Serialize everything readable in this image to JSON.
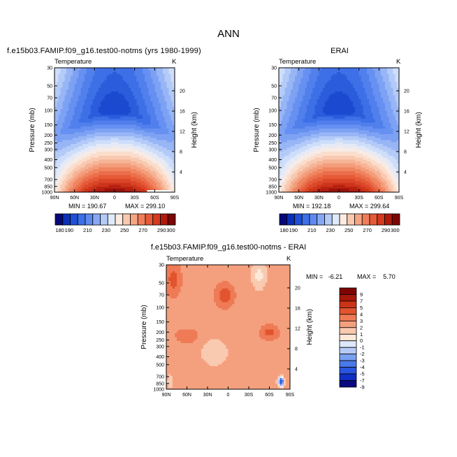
{
  "figure": {
    "title": "ANN"
  },
  "colors": {
    "abs_scale": [
      "#08087a",
      "#0b2fb8",
      "#1f50d6",
      "#3d6fe6",
      "#5e8af0",
      "#86a8f4",
      "#b4cbf8",
      "#dfeafc",
      "#fdebdf",
      "#f8c9b0",
      "#f4a583",
      "#ef7d59",
      "#e65a38",
      "#d43a1e",
      "#ae1a0e",
      "#7a0606"
    ],
    "diff_scale": [
      "#0a0a80",
      "#1030c4",
      "#2a55de",
      "#4a7aea",
      "#7aa0f2",
      "#b5caf6",
      "#dde8fb",
      "#fde9da",
      "#f9c9b0",
      "#f4a07e",
      "#ee7b56",
      "#e2542e",
      "#cc3418",
      "#a6180a",
      "#7e0404"
    ]
  },
  "chart_data": [
    {
      "type": "contour",
      "panel_title": "f.e15b03.FAMIP.f09_g16.test00-notms (yrs 1980-1999)",
      "variable": "Temperature",
      "units": "K",
      "ylabel": "Pressure (mb)",
      "ylabel_right": "Height (km)",
      "x_ticks": [
        "90N",
        "60N",
        "30N",
        "0",
        "30S",
        "60S",
        "90S"
      ],
      "y_ticks": [
        30,
        50,
        70,
        100,
        150,
        200,
        250,
        300,
        400,
        500,
        700,
        850,
        1000
      ],
      "y_ticks_right": [
        20,
        16,
        12,
        8,
        4
      ],
      "min_label": "MIN = 190.67",
      "max_label": "MAX = 299.10",
      "min": 190.67,
      "max": 299.1,
      "colorbar_labels": [
        "180",
        "190",
        "200",
        "210",
        "220",
        "230",
        "240",
        "250",
        "260",
        "270",
        "280",
        "290",
        "300"
      ],
      "colorbar_hidden_labels": [
        "200",
        "220",
        "240",
        "260",
        "280"
      ],
      "colorbar_levels": [
        180,
        185,
        190,
        195,
        200,
        205,
        210,
        215,
        220,
        225,
        230,
        235,
        240,
        245,
        250,
        255,
        260,
        265,
        270,
        275,
        280,
        285,
        290,
        295,
        300
      ]
    },
    {
      "type": "contour",
      "panel_title": "ERAI",
      "variable": "Temperature",
      "units": "K",
      "ylabel": "Pressure (mb)",
      "ylabel_right": "Height (km)",
      "x_ticks": [
        "90N",
        "60N",
        "30N",
        "0",
        "30S",
        "60S",
        "90S"
      ],
      "y_ticks": [
        30,
        50,
        70,
        100,
        150,
        200,
        250,
        300,
        400,
        500,
        700,
        850,
        1000
      ],
      "y_ticks_right": [
        20,
        16,
        12,
        8,
        4
      ],
      "min_label": "MIN = 192.18",
      "max_label": "MAX = 299.64",
      "min": 192.18,
      "max": 299.64,
      "colorbar_labels": [
        "180",
        "190",
        "200",
        "210",
        "220",
        "230",
        "240",
        "250",
        "260",
        "270",
        "280",
        "290",
        "300"
      ]
    },
    {
      "type": "contour",
      "panel_title": "f.e15b03.FAMIP.f09_g16.test00-notms - ERAI",
      "variable": "Temperature",
      "units": "K",
      "ylabel": "Pressure (mb)",
      "ylabel_right": "Height (km)",
      "x_ticks": [
        "90N",
        "60N",
        "30N",
        "0",
        "30S",
        "60S",
        "90S"
      ],
      "y_ticks": [
        30,
        50,
        70,
        100,
        150,
        200,
        250,
        300,
        400,
        500,
        700,
        850,
        1000
      ],
      "y_ticks_right": [
        20,
        16,
        12,
        8,
        4
      ],
      "min_label": "MIN =   -6.21",
      "max_label": "MAX =    5.70",
      "min": -6.21,
      "max": 5.7,
      "colorbar_labels": [
        "9",
        "7",
        "5",
        "4",
        "3",
        "2",
        "1",
        "0",
        "-1",
        "-2",
        "-3",
        "-4",
        "-5",
        "-7",
        "-9"
      ]
    }
  ]
}
